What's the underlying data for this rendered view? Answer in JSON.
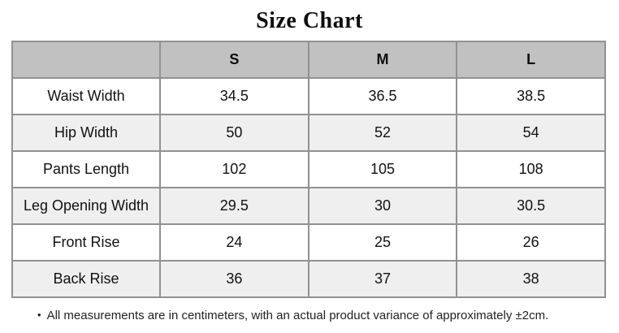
{
  "title": "Size Chart",
  "table": {
    "header": [
      "",
      "S",
      "M",
      "L"
    ],
    "rows": [
      {
        "label": "Waist Width",
        "values": [
          "34.5",
          "36.5",
          "38.5"
        ]
      },
      {
        "label": "Hip Width",
        "values": [
          "50",
          "52",
          "54"
        ]
      },
      {
        "label": "Pants Length",
        "values": [
          "102",
          "105",
          "108"
        ]
      },
      {
        "label": "Leg Opening Width",
        "values": [
          "29.5",
          "30",
          "30.5"
        ]
      },
      {
        "label": "Front Rise",
        "values": [
          "24",
          "25",
          "26"
        ]
      },
      {
        "label": "Back Rise",
        "values": [
          "36",
          "37",
          "38"
        ]
      }
    ]
  },
  "footnote": {
    "bullet": "•",
    "text": "All measurements are in centimeters, with an actual product variance of approximately ±2cm."
  },
  "colors": {
    "header_bg": "#c1c1c1",
    "alt_row_bg": "#efefef",
    "border": "#919191",
    "text": "#111111"
  },
  "chart_data": {
    "type": "table",
    "title": "Size Chart",
    "columns": [
      "S",
      "M",
      "L"
    ],
    "row_labels": [
      "Waist Width",
      "Hip Width",
      "Pants Length",
      "Leg Opening Width",
      "Front Rise",
      "Back Rise"
    ],
    "values": [
      [
        34.5,
        36.5,
        38.5
      ],
      [
        50,
        52,
        54
      ],
      [
        102,
        105,
        108
      ],
      [
        29.5,
        30,
        30.5
      ],
      [
        24,
        25,
        26
      ],
      [
        36,
        37,
        38
      ]
    ],
    "unit": "cm",
    "note": "All measurements are in centimeters, with an actual product variance of approximately ±2cm."
  }
}
